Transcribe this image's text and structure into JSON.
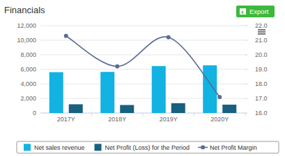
{
  "header": {
    "button": "Export"
  },
  "chart_data": {
    "type": "bar",
    "title": "Financials",
    "categories": [
      "2017Y",
      "2018Y",
      "2019Y",
      "2020Y"
    ],
    "series": [
      {
        "name": "Net sales revenue",
        "type": "bar",
        "color": "#12b2e3",
        "values": [
          5600,
          5650,
          6450,
          6550
        ]
      },
      {
        "name": "Net Profit (Loss) for the Period",
        "type": "bar",
        "color": "#17607f",
        "values": [
          1200,
          1100,
          1350,
          1150
        ]
      },
      {
        "name": "Net Profit Margin",
        "type": "line",
        "color": "#5a6b96",
        "marker": "circle",
        "axis": "y2",
        "values": [
          21.3,
          19.2,
          21.2,
          17.1
        ]
      }
    ],
    "ylim": [
      0,
      12000
    ],
    "yticks": [
      0,
      {
        "value": 2000,
        "label": "2,000"
      },
      {
        "value": 4000,
        "label": "4,000"
      },
      {
        "value": 6000,
        "label": "6,000"
      },
      {
        "value": 8000,
        "label": "8,000"
      },
      {
        "value": 10000,
        "label": "10,000"
      },
      {
        "value": 12000,
        "label": "12,000"
      }
    ],
    "y2lim": [
      16,
      22
    ],
    "y2ticks": [
      {
        "value": 16,
        "label": "16.0"
      },
      {
        "value": 17,
        "label": "17.0"
      },
      {
        "value": 18,
        "label": "18.0"
      },
      {
        "value": 19,
        "label": "19.0"
      },
      {
        "value": 20,
        "label": "20.0"
      },
      {
        "value": 21,
        "label": "21.0"
      },
      {
        "value": 22,
        "label": "22.0"
      }
    ],
    "grid": true,
    "legend": "bottom"
  }
}
